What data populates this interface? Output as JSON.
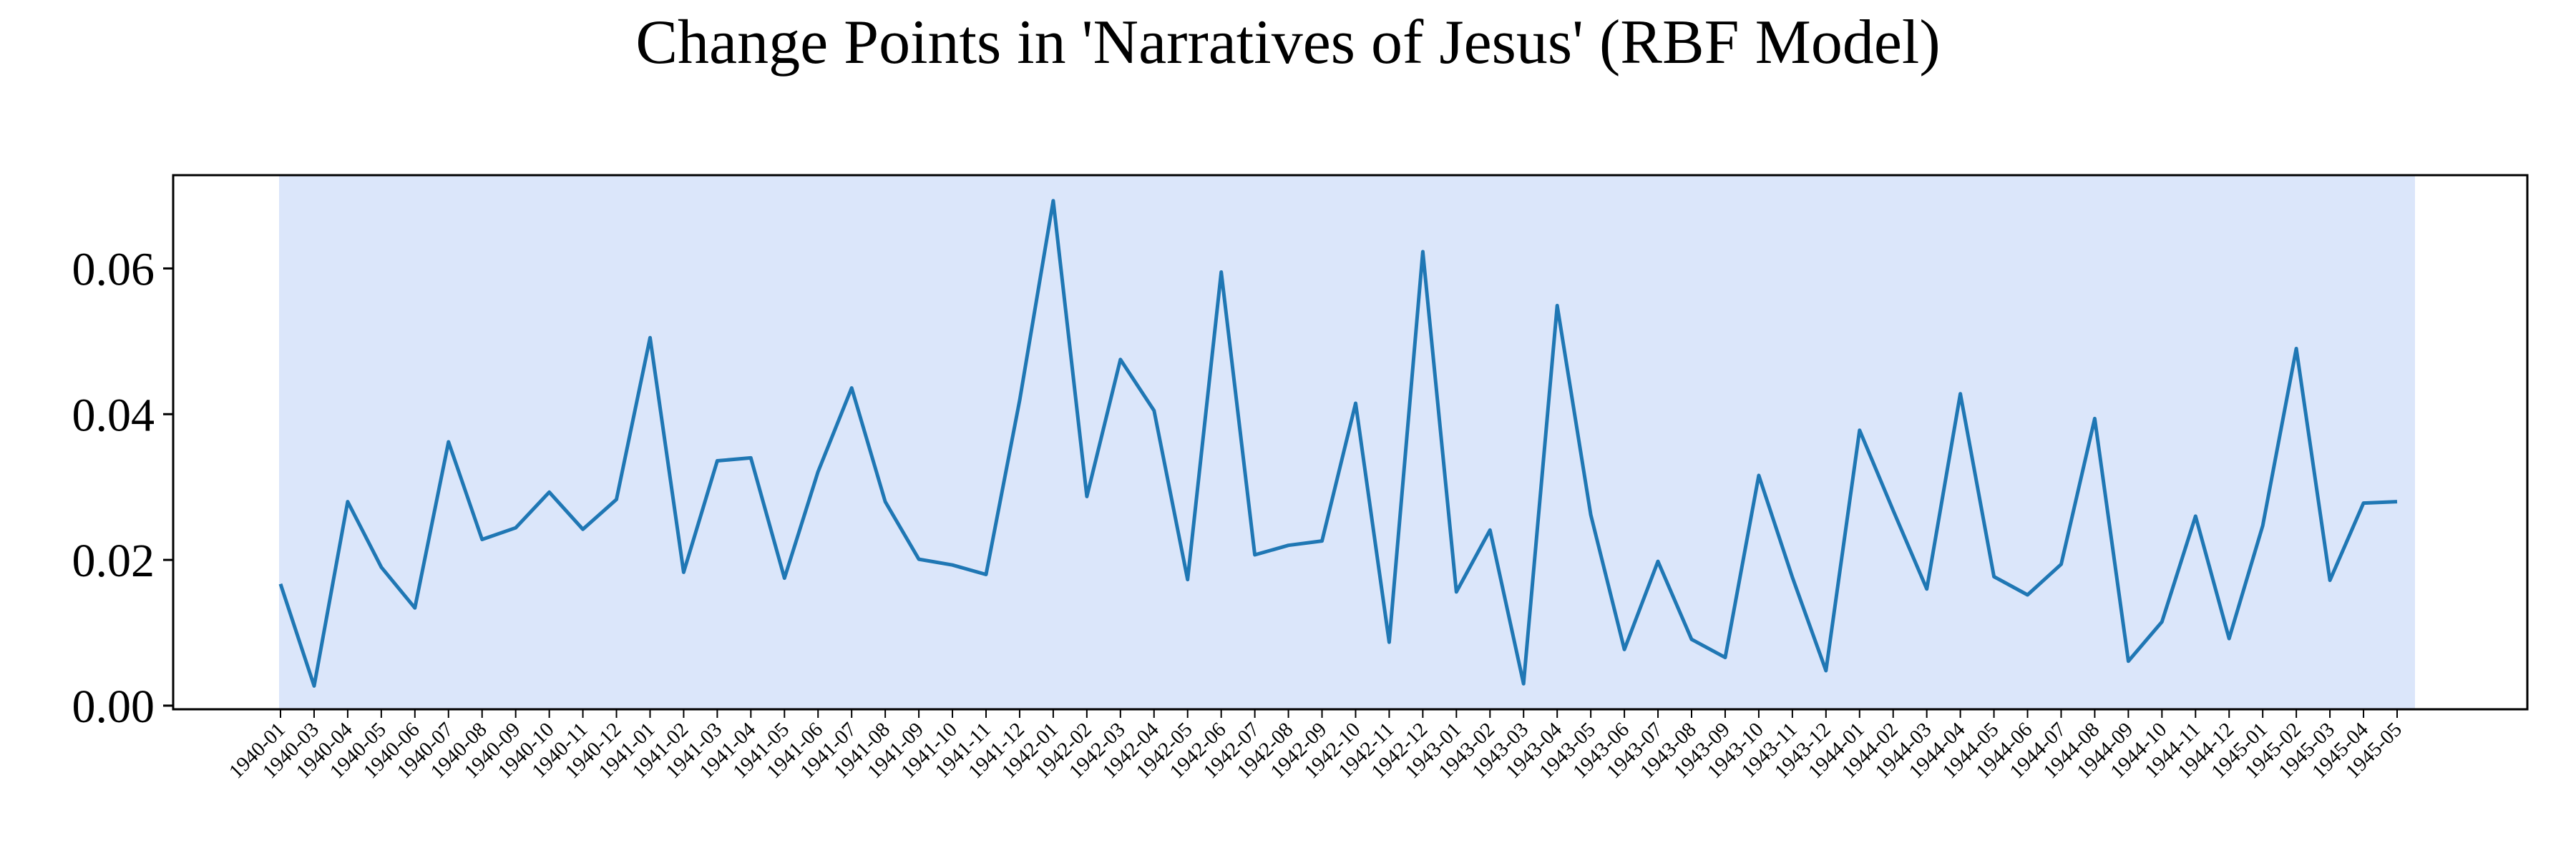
{
  "chart_data": {
    "type": "line",
    "title": "Change Points in 'Narratives of Jesus' (RBF Model)",
    "xlabel": "",
    "ylabel": "",
    "ylim": [
      -0.0005,
      0.0728
    ],
    "y_ticks": [
      "0.00",
      "0.02",
      "0.04",
      "0.06"
    ],
    "y_tick_values": [
      0.0,
      0.02,
      0.04,
      0.06
    ],
    "grid": false,
    "legend": "none",
    "line_color": "#1f77b4",
    "shaded_region_color": "#dbe6fa",
    "shaded_region": {
      "start": "1940-01",
      "end": "1945-05"
    },
    "x": [
      "1940-01",
      "1940-03",
      "1940-04",
      "1940-05",
      "1940-06",
      "1940-07",
      "1940-08",
      "1940-09",
      "1940-10",
      "1940-11",
      "1940-12",
      "1941-01",
      "1941-02",
      "1941-03",
      "1941-04",
      "1941-05",
      "1941-06",
      "1941-07",
      "1941-08",
      "1941-09",
      "1941-10",
      "1941-11",
      "1941-12",
      "1942-01",
      "1942-02",
      "1942-03",
      "1942-04",
      "1942-05",
      "1942-06",
      "1942-07",
      "1942-08",
      "1942-09",
      "1942-10",
      "1942-11",
      "1942-12",
      "1943-01",
      "1943-02",
      "1943-03",
      "1943-04",
      "1943-05",
      "1943-06",
      "1943-07",
      "1943-08",
      "1943-09",
      "1943-10",
      "1943-11",
      "1943-12",
      "1944-01",
      "1944-02",
      "1944-03",
      "1944-04",
      "1944-05",
      "1944-06",
      "1944-07",
      "1944-08",
      "1944-09",
      "1944-10",
      "1944-11",
      "1944-12",
      "1945-01",
      "1945-02",
      "1945-03",
      "1945-04",
      "1945-05"
    ],
    "series": [
      {
        "values": [
          0.0167,
          0.0027,
          0.028,
          0.019,
          0.0134,
          0.0362,
          0.0228,
          0.0244,
          0.0293,
          0.0242,
          0.0283,
          0.0505,
          0.0183,
          0.0336,
          0.034,
          0.0175,
          0.0321,
          0.0436,
          0.028,
          0.0201,
          0.0193,
          0.018,
          0.0419,
          0.0693,
          0.0287,
          0.0475,
          0.0405,
          0.0173,
          0.0595,
          0.0207,
          0.022,
          0.0226,
          0.0415,
          0.0087,
          0.0623,
          0.0156,
          0.0241,
          0.003,
          0.0549,
          0.0262,
          0.0077,
          0.0198,
          0.0091,
          0.0066,
          0.0316,
          0.0176,
          0.0048,
          0.0378,
          0.0268,
          0.016,
          0.0428,
          0.0177,
          0.0152,
          0.0194,
          0.0394,
          0.0061,
          0.0115,
          0.026,
          0.0092,
          0.0247,
          0.049,
          0.0172,
          0.0278,
          0.028
        ]
      }
    ]
  }
}
